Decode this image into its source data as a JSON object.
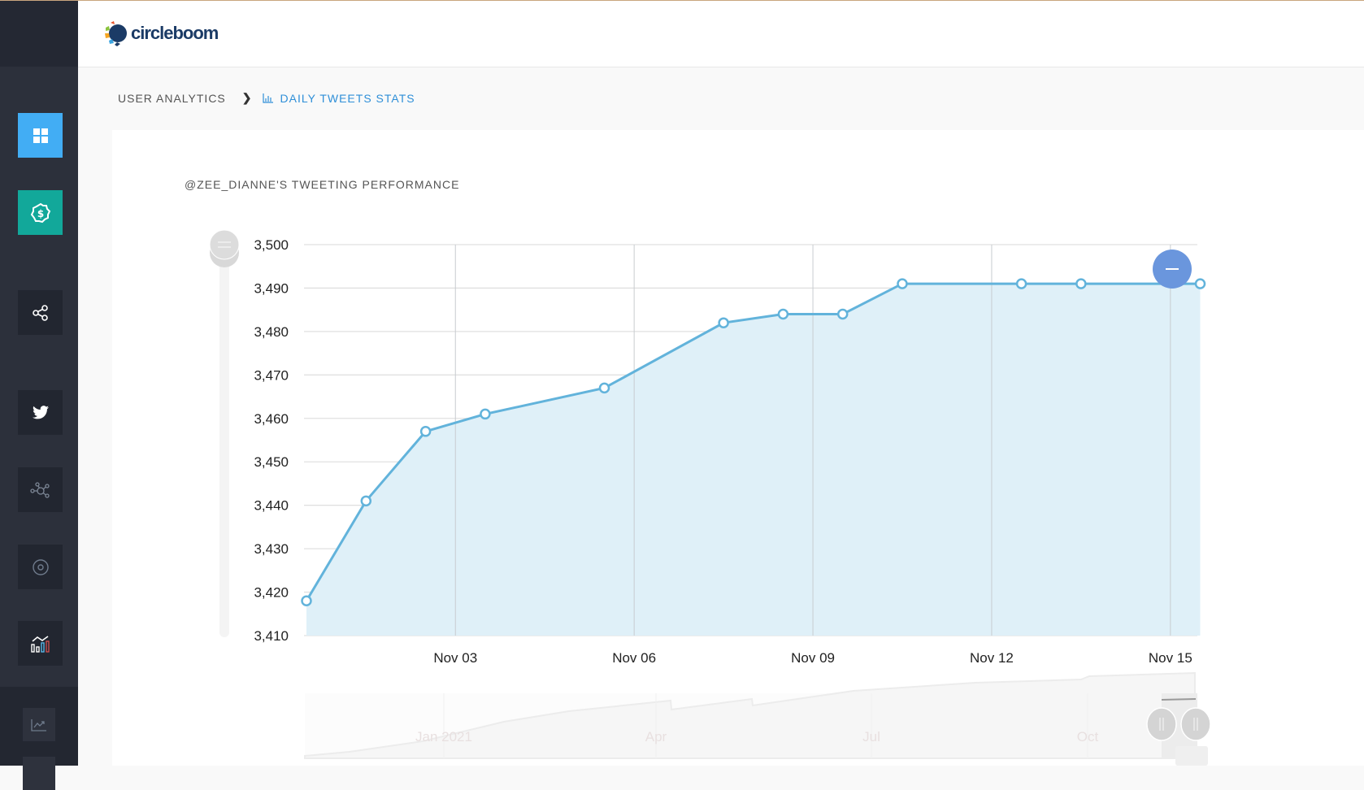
{
  "header": {
    "logo_text": "circleboom"
  },
  "breadcrumb": {
    "parent": "USER ANALYTICS",
    "current": "DAILY TWEETS STATS"
  },
  "sidebar": {
    "items": [
      {
        "icon": "dashboard-grid-icon",
        "color": "#42adf4"
      },
      {
        "icon": "dollar-badge-icon",
        "color": "#12a89a"
      },
      {
        "icon": "share-icon"
      },
      {
        "icon": "twitter-icon"
      },
      {
        "icon": "network-icon"
      },
      {
        "icon": "target-circle-icon"
      },
      {
        "icon": "analytics-chart-icon"
      },
      {
        "icon": "trend-chart-icon"
      }
    ]
  },
  "chart_data": {
    "type": "area",
    "title": "@ZEE_DIANNE'S TWEETING PERFORMANCE",
    "xlabel": "",
    "ylabel": "",
    "ylim": [
      3410,
      3500
    ],
    "yticks": [
      "3,410",
      "3,420",
      "3,430",
      "3,440",
      "3,450",
      "3,460",
      "3,470",
      "3,480",
      "3,490",
      "3,500"
    ],
    "xtick_labels": [
      "Nov 03",
      "Nov 06",
      "Nov 09",
      "Nov 12",
      "Nov 15"
    ],
    "grid": true,
    "color": "#62b3db",
    "fill": "#dff0f8",
    "points": [
      {
        "x": "Oct 31",
        "y": 3418
      },
      {
        "x": "Nov 01",
        "y": 3441
      },
      {
        "x": "Nov 02",
        "y": 3457
      },
      {
        "x": "Nov 03",
        "y": 3461
      },
      {
        "x": "Nov 05",
        "y": 3467
      },
      {
        "x": "Nov 07",
        "y": 3482
      },
      {
        "x": "Nov 08",
        "y": 3484
      },
      {
        "x": "Nov 09",
        "y": 3484
      },
      {
        "x": "Nov 10",
        "y": 3491
      },
      {
        "x": "Nov 12",
        "y": 3491
      },
      {
        "x": "Nov 13",
        "y": 3491
      },
      {
        "x": "Nov 15",
        "y": 3491
      }
    ],
    "navigator": {
      "labels": [
        "Jan 2021",
        "Apr",
        "Jul",
        "Oct"
      ]
    }
  }
}
